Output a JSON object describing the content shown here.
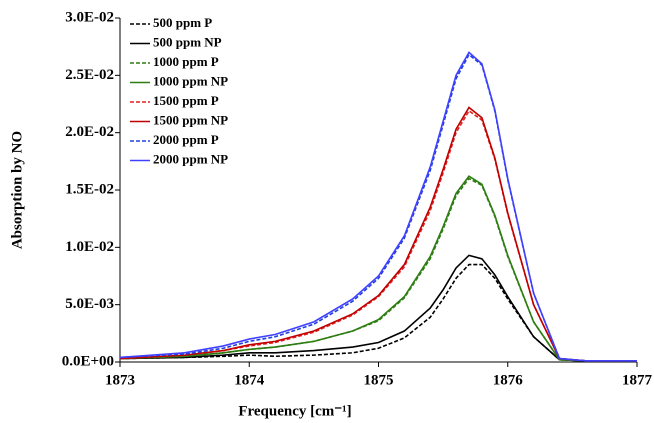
{
  "chart_data": {
    "type": "line",
    "x_label": "Frequency [cm⁻¹]",
    "y_label": "Absorption by NO",
    "x": [
      1873,
      1873.5,
      1873.8,
      1874,
      1874.2,
      1874.5,
      1874.8,
      1875,
      1875.2,
      1875.4,
      1875.5,
      1875.6,
      1875.7,
      1875.8,
      1875.9,
      1876,
      1876.2,
      1876.4,
      1876.6,
      1877
    ],
    "series": [
      {
        "name": "500 ppm P",
        "color": "#000000",
        "style": "dashed",
        "values": [
          0.0003,
          0.0004,
          0.0005,
          0.0006,
          0.0005,
          0.0006,
          0.0008,
          0.0012,
          0.0021,
          0.0039,
          0.0055,
          0.0073,
          0.0085,
          0.0085,
          0.0073,
          0.0055,
          0.0022,
          0.0002,
          0.0001,
          0.0001
        ]
      },
      {
        "name": "500 ppm NP",
        "color": "#000000",
        "style": "solid",
        "values": [
          0.0003,
          0.0004,
          0.0006,
          0.0008,
          0.0008,
          0.001,
          0.0013,
          0.0017,
          0.0027,
          0.0047,
          0.0063,
          0.0082,
          0.0093,
          0.009,
          0.0076,
          0.0057,
          0.0022,
          0.0002,
          0.0001,
          0.0001
        ]
      },
      {
        "name": "1000 ppm P",
        "color": "#2e7d12",
        "style": "dashed",
        "values": [
          0.0003,
          0.0005,
          0.0008,
          0.0011,
          0.0013,
          0.0018,
          0.0027,
          0.0036,
          0.0056,
          0.009,
          0.0116,
          0.0145,
          0.016,
          0.0154,
          0.0127,
          0.0092,
          0.0035,
          0.0002,
          0.0001,
          0.0001
        ]
      },
      {
        "name": "1000 ppm NP",
        "color": "#2e7d12",
        "style": "solid",
        "values": [
          0.0003,
          0.0005,
          0.0008,
          0.0011,
          0.0013,
          0.0018,
          0.0027,
          0.0037,
          0.0057,
          0.0092,
          0.0118,
          0.0147,
          0.0162,
          0.0155,
          0.0128,
          0.0093,
          0.0035,
          0.0002,
          0.0001,
          0.0001
        ]
      },
      {
        "name": "1500 ppm P",
        "color": "#e02020",
        "style": "dashed",
        "values": [
          0.0003,
          0.0006,
          0.001,
          0.0014,
          0.0017,
          0.0026,
          0.0041,
          0.0057,
          0.0083,
          0.0132,
          0.0165,
          0.02,
          0.0219,
          0.0211,
          0.0177,
          0.0129,
          0.005,
          0.0003,
          0.0001,
          0.0001
        ]
      },
      {
        "name": "1500 ppm NP",
        "color": "#c00000",
        "style": "solid",
        "values": [
          0.0003,
          0.0006,
          0.001,
          0.0015,
          0.0018,
          0.0027,
          0.0042,
          0.0058,
          0.0085,
          0.0135,
          0.0168,
          0.0203,
          0.0222,
          0.0213,
          0.0178,
          0.013,
          0.005,
          0.0003,
          0.0001,
          0.0001
        ]
      },
      {
        "name": "2000 ppm P",
        "color": "#2040e0",
        "style": "dashed",
        "values": [
          0.0004,
          0.0007,
          0.0012,
          0.0018,
          0.0022,
          0.0033,
          0.0053,
          0.0073,
          0.0108,
          0.0167,
          0.0207,
          0.0247,
          0.0268,
          0.0259,
          0.0219,
          0.0159,
          0.006,
          0.0003,
          0.0001,
          0.0001
        ]
      },
      {
        "name": "2000 ppm NP",
        "color": "#4040ff",
        "style": "solid",
        "values": [
          0.0004,
          0.0008,
          0.0014,
          0.002,
          0.0024,
          0.0035,
          0.0055,
          0.0075,
          0.011,
          0.017,
          0.021,
          0.025,
          0.027,
          0.026,
          0.022,
          0.016,
          0.006,
          0.0003,
          0.0001,
          0.0001
        ]
      }
    ],
    "xlim": [
      1873,
      1877
    ],
    "xticks": [
      1873,
      1874,
      1875,
      1876,
      1877
    ],
    "ylim": [
      0,
      0.03
    ],
    "yticks": [
      {
        "value": 0,
        "label": "0.0E+00"
      },
      {
        "value": 0.005,
        "label": "5.0E-03"
      },
      {
        "value": 0.01,
        "label": "1.0E-02"
      },
      {
        "value": 0.015,
        "label": "1.5E-02"
      },
      {
        "value": 0.02,
        "label": "2.0E-02"
      },
      {
        "value": 0.025,
        "label": "2.5E-02"
      },
      {
        "value": 0.03,
        "label": "3.0E-02"
      }
    ],
    "legend": "upper-left",
    "grid": false
  }
}
